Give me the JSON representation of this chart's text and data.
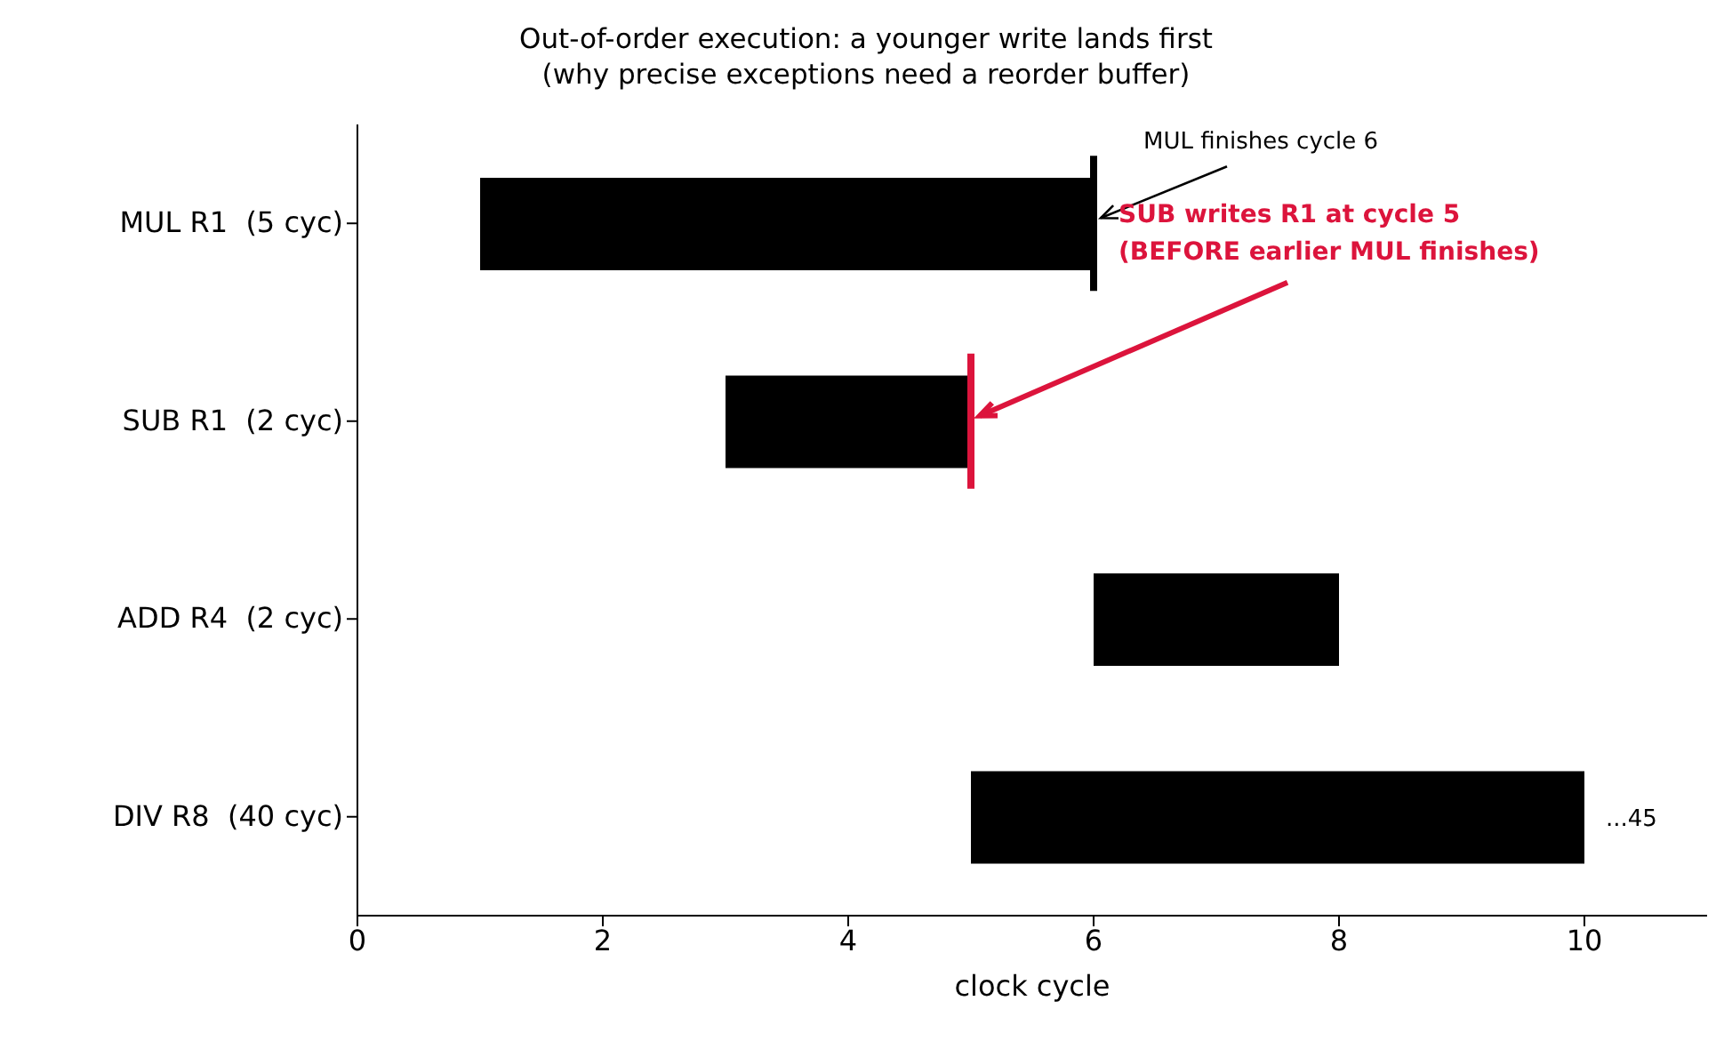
{
  "chart_data": {
    "type": "bar",
    "orientation": "horizontal",
    "title": "Out-of-order execution: a younger write lands first",
    "subtitle": "(why precise exceptions need a reorder buffer)",
    "xlabel": "clock cycle",
    "categories": [
      "MUL R1  (5 cyc)",
      "SUB R1  (2 cyc)",
      "ADD R4  (2 cyc)",
      "DIV R8  (40 cyc)"
    ],
    "base": [
      1,
      3,
      6,
      5
    ],
    "values": [
      5,
      2,
      2,
      5
    ],
    "color": "#000000",
    "xlim": [
      0,
      11
    ],
    "xticks": [
      0,
      2,
      4,
      6,
      8,
      10
    ],
    "annotations": [
      {
        "text": "MUL finishes cycle 6",
        "x": 6,
        "y": "MUL R1  (5 cyc)"
      },
      {
        "text": "SUB writes R1 at cycle 5\n(BEFORE earlier MUL finishes)",
        "x": 5,
        "y": "SUB R1  (2 cyc)"
      },
      {
        "text": "...45",
        "x": 10,
        "y": "DIV R8  (40 cyc)"
      }
    ]
  }
}
